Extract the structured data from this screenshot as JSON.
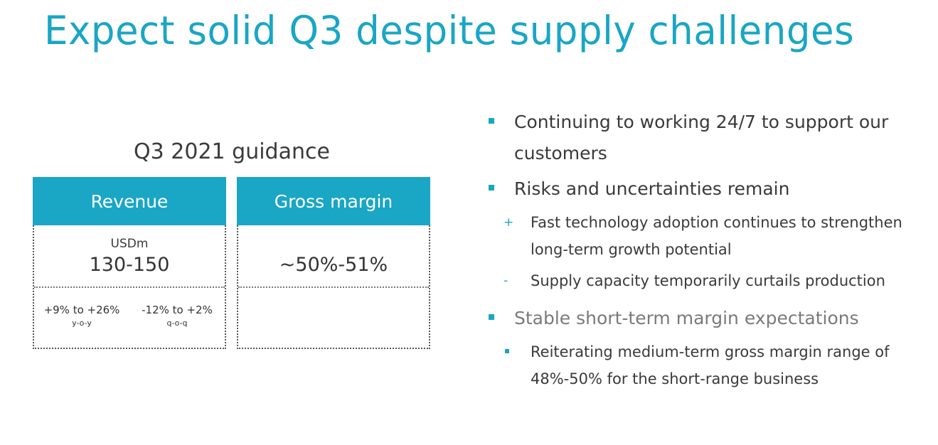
{
  "title": "Expect solid Q3 despite supply challenges",
  "guidance": {
    "heading": "Q3 2021 guidance",
    "revenue": {
      "label": "Revenue",
      "unit": "USDm",
      "value": "130-150",
      "yoy_value": "+9% to +26%",
      "yoy_label": "y-o-y",
      "qoq_value": "-12% to +2%",
      "qoq_label": "q-o-q"
    },
    "gross_margin": {
      "label": "Gross margin",
      "value": "~50%-51%"
    }
  },
  "bullets": {
    "b1": "Continuing to working 24/7 to support our customers",
    "b2": "Risks and uncertainties remain",
    "b2_sub1_symbol": "+",
    "b2_sub1": "Fast technology adoption continues to strengthen long-term growth potential",
    "b2_sub2_symbol": "-",
    "b2_sub2": "Supply capacity temporarily curtails production",
    "b3": "Stable short-term margin expectations",
    "b3_sub1": "Reiterating medium-term gross margin range of 48%-50% for the short-range business"
  },
  "colors": {
    "accent": "#1aa6c5",
    "text": "#3a3a3a",
    "muted": "#7a7a7a"
  }
}
